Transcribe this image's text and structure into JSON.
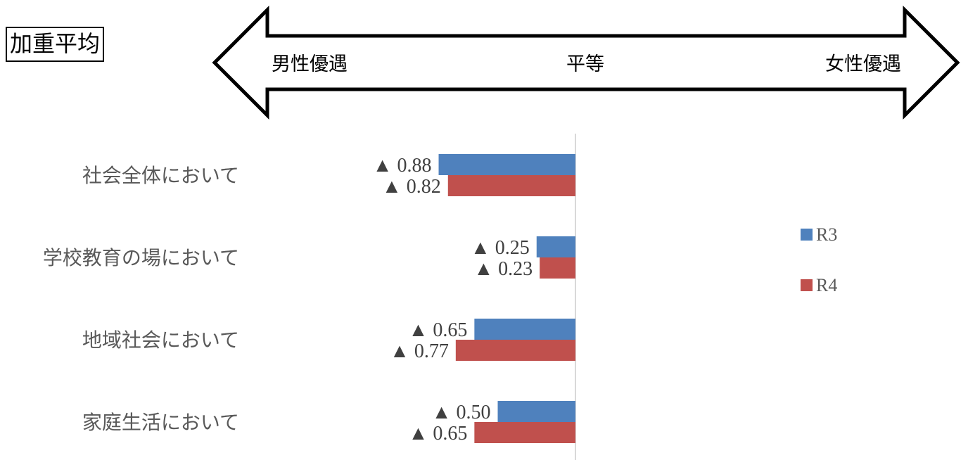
{
  "title": "加重平均",
  "scale": {
    "left": "男性優遇",
    "center": "平等",
    "right": "女性優遇"
  },
  "chart_data": {
    "type": "bar",
    "orientation": "horizontal",
    "categories": [
      "社会全体において",
      "学校教育の場において",
      "地域社会において",
      "家庭生活において"
    ],
    "series": [
      {
        "name": "R3",
        "color": "#4F81BD",
        "values": [
          -0.88,
          -0.25,
          -0.65,
          -0.5
        ],
        "labels": [
          "▲ 0.88",
          "▲ 0.25",
          "▲ 0.65",
          "▲ 0.50"
        ]
      },
      {
        "name": "R4",
        "color": "#C0504D",
        "values": [
          -0.82,
          -0.23,
          -0.77,
          -0.65
        ],
        "labels": [
          "▲ 0.82",
          "▲ 0.23",
          "▲ 0.77",
          "▲ 0.65"
        ]
      }
    ],
    "xlim": [
      -2,
      2
    ],
    "grid": false,
    "legend_position": "right"
  }
}
